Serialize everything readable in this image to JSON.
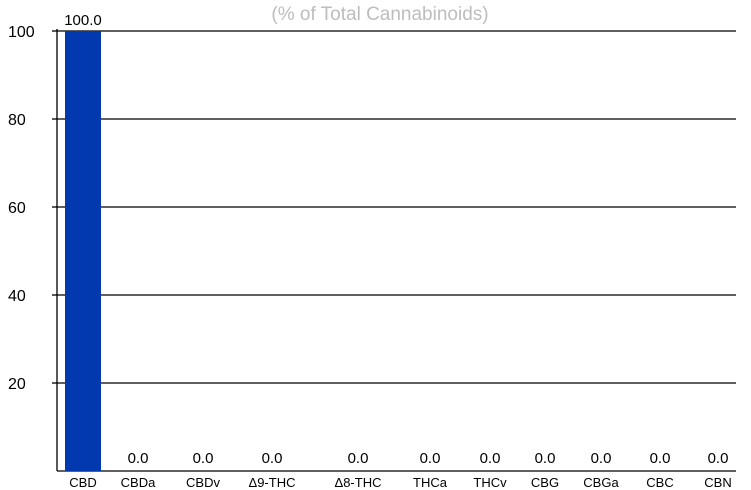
{
  "chart_data": {
    "type": "bar",
    "title": "",
    "subtitle": "(% of Total Cannabinoids)",
    "xlabel": "",
    "ylabel": "",
    "categories": [
      "CBD",
      "CBDa",
      "CBDv",
      "Δ9-THC",
      "Δ8-THC",
      "THCa",
      "THCv",
      "CBG",
      "CBGa",
      "CBC",
      "CBN"
    ],
    "values": [
      100.0,
      0.0,
      0.0,
      0.0,
      0.0,
      0.0,
      0.0,
      0.0,
      0.0,
      0.0,
      0.0
    ],
    "data_labels": [
      "100.0",
      "0.0",
      "0.0",
      "0.0",
      "0.0",
      "0.0",
      "0.0",
      "0.0",
      "0.0",
      "0.0",
      "0.0"
    ],
    "yticks": [
      20,
      40,
      60,
      80,
      100
    ],
    "ylim": [
      0,
      100
    ],
    "grid": true,
    "legend": "none",
    "bar_color": "#0339ae",
    "grid_color": "#000000"
  }
}
